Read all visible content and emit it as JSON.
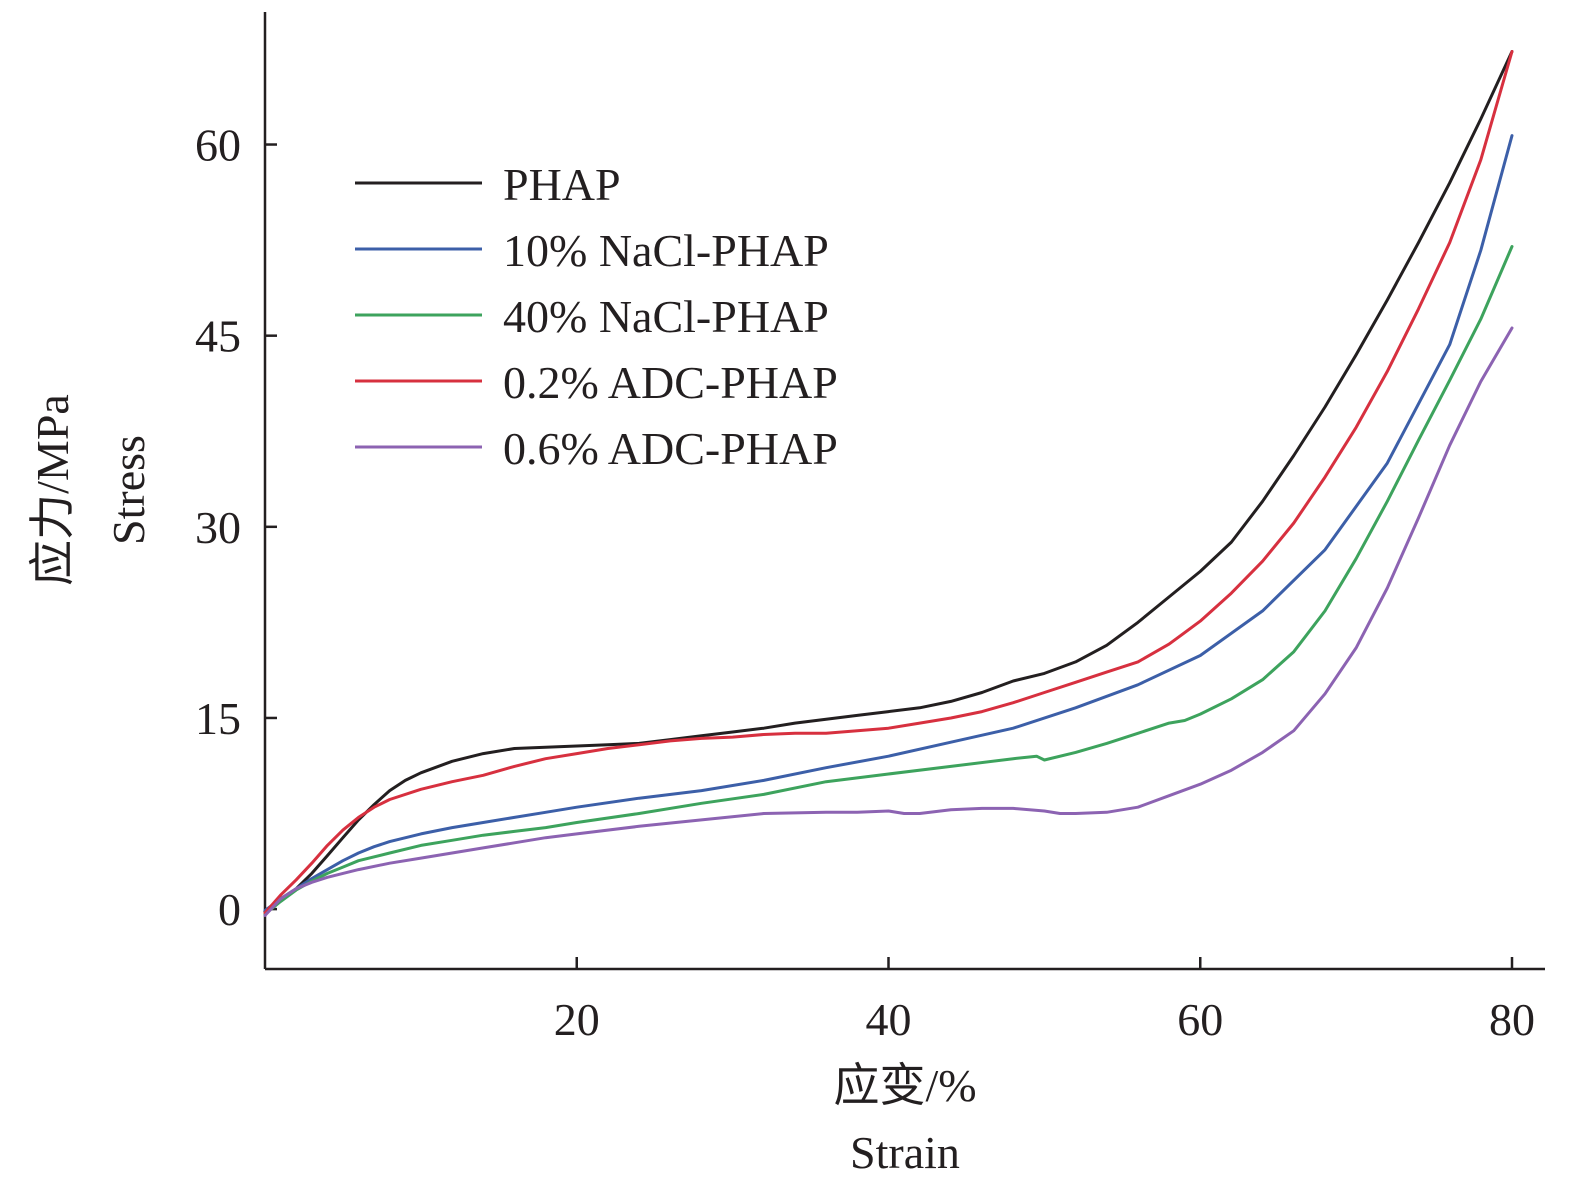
{
  "chart_data": {
    "type": "line",
    "xlabel_cn": "应变/%",
    "xlabel_en": "Strain",
    "ylabel_cn": "应力/MPa",
    "ylabel_en": "Stress",
    "xlim": [
      0,
      83
    ],
    "ylim": [
      -4.7,
      70.4
    ],
    "xticks": [
      20,
      40,
      60,
      80
    ],
    "yticks": [
      0,
      15,
      30,
      45,
      60
    ],
    "legend_position": "top-left",
    "series": [
      {
        "name": "PHAP",
        "color": "#231f20",
        "x": [
          0,
          1,
          2,
          3,
          4,
          5,
          6,
          7,
          8,
          9,
          10,
          12,
          14,
          16,
          18,
          20,
          22,
          24,
          26,
          28,
          30,
          32,
          34,
          36,
          38,
          40,
          42,
          44,
          46,
          48,
          50,
          52,
          54,
          56,
          58,
          60,
          62,
          64,
          66,
          68,
          70,
          72,
          74,
          76,
          78,
          80
        ],
        "y": [
          -0.2,
          0.8,
          1.6,
          2.8,
          4.2,
          5.6,
          7.0,
          8.2,
          9.3,
          10.1,
          10.7,
          11.6,
          12.2,
          12.6,
          12.7,
          12.8,
          12.9,
          13.0,
          13.3,
          13.6,
          13.9,
          14.2,
          14.6,
          14.9,
          15.2,
          15.5,
          15.8,
          16.3,
          17.0,
          17.9,
          18.5,
          19.4,
          20.7,
          22.5,
          24.5,
          26.5,
          28.8,
          32.0,
          35.6,
          39.4,
          43.5,
          47.8,
          52.3,
          57.0,
          62.0,
          67.3
        ]
      },
      {
        "name": "10% NaCl-PHAP",
        "color": "#3c5fa8",
        "x": [
          0,
          1,
          2,
          3,
          4,
          5,
          6,
          7,
          8,
          10,
          12,
          14,
          16,
          18,
          20,
          24,
          28,
          32,
          36,
          40,
          44,
          48,
          52,
          56,
          60,
          64,
          68,
          72,
          76,
          78,
          80
        ],
        "y": [
          -0.1,
          0.8,
          1.6,
          2.4,
          3.1,
          3.8,
          4.4,
          4.9,
          5.3,
          5.9,
          6.4,
          6.8,
          7.2,
          7.6,
          8.0,
          8.7,
          9.3,
          10.1,
          11.1,
          12.0,
          13.1,
          14.2,
          15.8,
          17.6,
          19.9,
          23.4,
          28.2,
          35.0,
          44.3,
          51.7,
          60.7
        ]
      },
      {
        "name": "40% NaCl-PHAP",
        "color": "#3da35d",
        "x": [
          0,
          1,
          2,
          3,
          4,
          5,
          6,
          8,
          10,
          12,
          14,
          16,
          18,
          20,
          24,
          28,
          32,
          36,
          40,
          44,
          48,
          49.5,
          50,
          52,
          54,
          56,
          58,
          59,
          60,
          62,
          64,
          66,
          68,
          70,
          72,
          74,
          76,
          78,
          80
        ],
        "y": [
          -0.4,
          0.6,
          1.5,
          2.2,
          2.8,
          3.3,
          3.8,
          4.4,
          5.0,
          5.4,
          5.8,
          6.1,
          6.4,
          6.8,
          7.5,
          8.3,
          9.0,
          10.0,
          10.6,
          11.2,
          11.8,
          12.0,
          11.7,
          12.3,
          13.0,
          13.8,
          14.6,
          14.8,
          15.3,
          16.5,
          18.0,
          20.2,
          23.4,
          27.5,
          32.0,
          36.8,
          41.5,
          46.3,
          52.0
        ]
      },
      {
        "name": "0.2% ADC-PHAP",
        "color": "#d7303f",
        "x": [
          0,
          1,
          2,
          3,
          4,
          5,
          6,
          7,
          8,
          10,
          12,
          14,
          16,
          18,
          20,
          22,
          24,
          26,
          28,
          30,
          32,
          34,
          36,
          38,
          40,
          42,
          44,
          46,
          48,
          50,
          52,
          54,
          56,
          58,
          60,
          62,
          64,
          66,
          68,
          70,
          72,
          74,
          76,
          78,
          80
        ],
        "y": [
          -0.3,
          1.1,
          2.3,
          3.6,
          5.0,
          6.2,
          7.2,
          8.0,
          8.6,
          9.4,
          10.0,
          10.5,
          11.2,
          11.8,
          12.2,
          12.6,
          12.9,
          13.2,
          13.4,
          13.5,
          13.7,
          13.8,
          13.8,
          14.0,
          14.2,
          14.6,
          15.0,
          15.5,
          16.2,
          17.0,
          17.8,
          18.6,
          19.4,
          20.8,
          22.6,
          24.8,
          27.3,
          30.3,
          33.9,
          37.8,
          42.2,
          47.1,
          52.3,
          58.8,
          67.3
        ]
      },
      {
        "name": "0.6% ADC-PHAP",
        "color": "#8c63b2",
        "x": [
          0,
          1,
          2,
          3,
          4,
          5,
          6,
          8,
          10,
          12,
          14,
          16,
          18,
          20,
          24,
          28,
          32,
          36,
          38,
          40,
          41,
          42,
          44,
          46,
          48,
          50,
          51,
          52,
          54,
          56,
          58,
          60,
          62,
          64,
          66,
          68,
          70,
          72,
          74,
          76,
          78,
          80
        ],
        "y": [
          -0.5,
          0.8,
          1.6,
          2.1,
          2.5,
          2.8,
          3.1,
          3.6,
          4.0,
          4.4,
          4.8,
          5.2,
          5.6,
          5.9,
          6.5,
          7.0,
          7.5,
          7.6,
          7.6,
          7.7,
          7.5,
          7.5,
          7.8,
          7.9,
          7.9,
          7.7,
          7.5,
          7.5,
          7.6,
          8.0,
          8.9,
          9.8,
          10.9,
          12.3,
          14.0,
          16.9,
          20.5,
          25.2,
          30.7,
          36.4,
          41.4,
          45.6
        ]
      }
    ]
  }
}
